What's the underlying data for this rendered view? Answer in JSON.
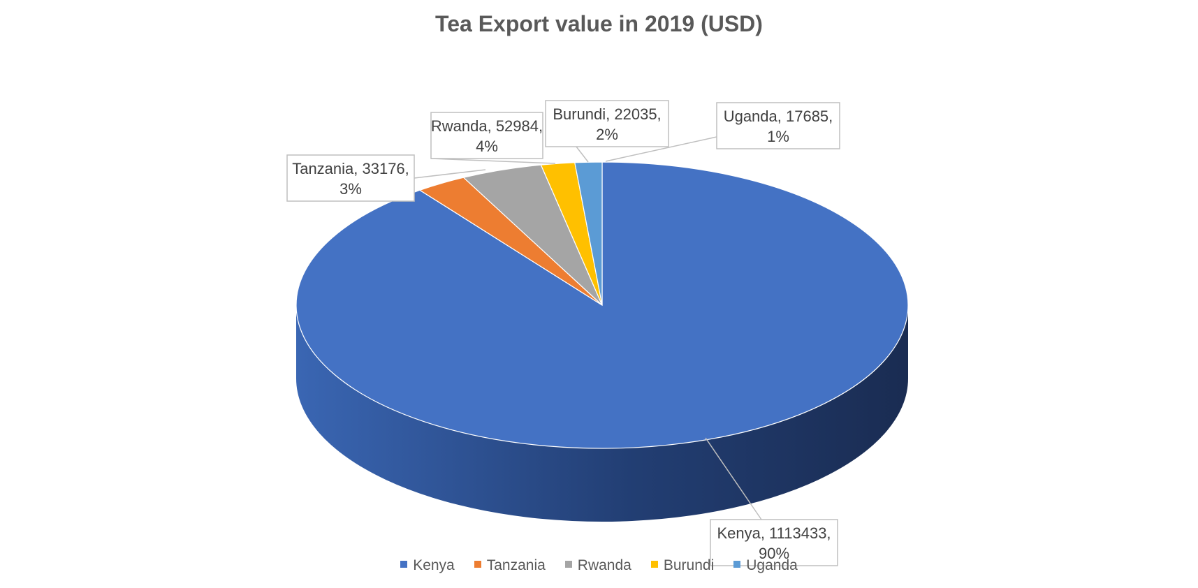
{
  "chart_data": {
    "type": "pie",
    "title": "Tea Export value in 2019 (USD)",
    "three_d": true,
    "legend_position": "bottom",
    "slices": [
      {
        "label": "Kenya",
        "value": 1113433,
        "percent_label": "90%",
        "color": "#4472C4"
      },
      {
        "label": "Tanzania",
        "value": 33176,
        "percent_label": "3%",
        "color": "#ED7D31"
      },
      {
        "label": "Rwanda",
        "value": 52984,
        "percent_label": "4%",
        "color": "#A5A5A5"
      },
      {
        "label": "Burundi",
        "value": 22035,
        "percent_label": "2%",
        "color": "#FFC000"
      },
      {
        "label": "Uganda",
        "value": 17685,
        "percent_label": "1%",
        "color": "#5B9BD5"
      }
    ]
  }
}
